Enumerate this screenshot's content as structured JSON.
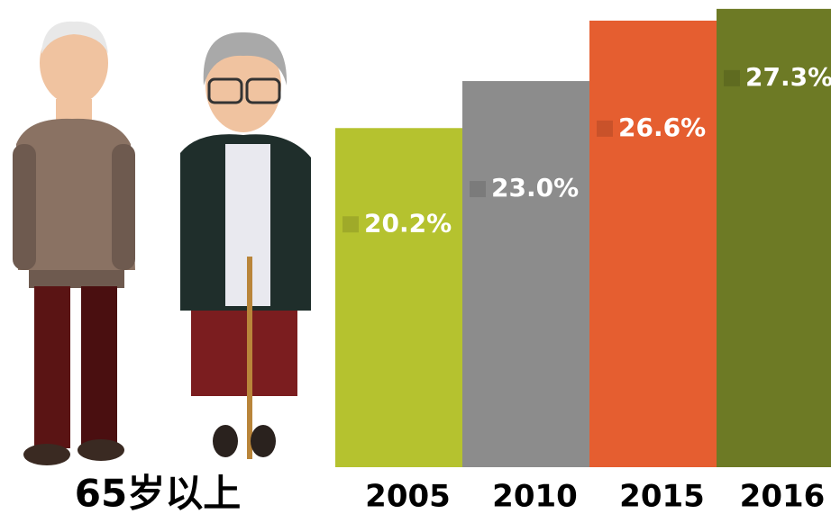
{
  "chart_data": {
    "type": "bar",
    "caption": "65岁以上",
    "categories": [
      "2005",
      "2010",
      "2015",
      "2016"
    ],
    "series": [
      {
        "values": [
          20.2,
          23.0,
          26.6,
          27.3
        ],
        "value_labels": [
          "20.2%",
          "23.0%",
          "26.6%",
          "27.3%"
        ],
        "colors": [
          "#b5c22f",
          "#8c8c8c",
          "#e55e30",
          "#6d7a25"
        ]
      }
    ]
  }
}
